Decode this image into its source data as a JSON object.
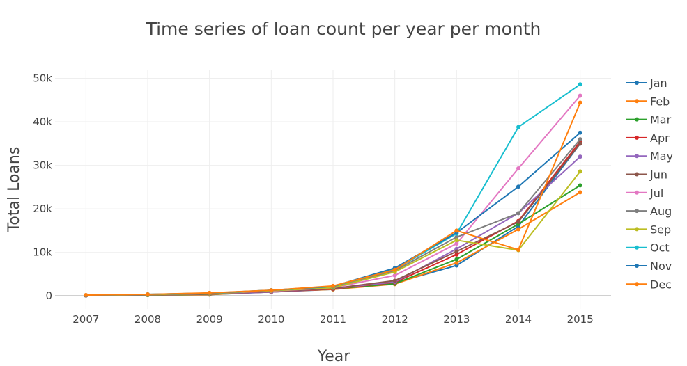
{
  "chart_data": {
    "type": "line",
    "title": "Time series of loan count per year per month",
    "xlabel": "Year",
    "ylabel": "Total Loans",
    "x": [
      2007,
      2008,
      2009,
      2010,
      2011,
      2012,
      2013,
      2014,
      2015
    ],
    "xlim": [
      2006.5,
      2015.5
    ],
    "ylim": [
      -3000,
      52000
    ],
    "yticks": [
      0,
      10000,
      20000,
      30000,
      40000,
      50000
    ],
    "ytick_labels": [
      "0",
      "10k",
      "20k",
      "30k",
      "40k",
      "50k"
    ],
    "grid": true,
    "legend_position": "right",
    "series": [
      {
        "name": "Jan",
        "color": "#1f77b4",
        "values": [
          100,
          200,
          300,
          900,
          1500,
          3000,
          7000,
          16000,
          35000
        ]
      },
      {
        "name": "Feb",
        "color": "#ff7f0e",
        "values": [
          100,
          200,
          300,
          1000,
          1500,
          2700,
          7600,
          15300,
          23800
        ]
      },
      {
        "name": "Mar",
        "color": "#2ca02c",
        "values": [
          100,
          200,
          400,
          1000,
          1600,
          2800,
          8400,
          16500,
          25400
        ]
      },
      {
        "name": "Apr",
        "color": "#d62728",
        "values": [
          100,
          250,
          450,
          900,
          1600,
          3100,
          9500,
          17200,
          35500
        ]
      },
      {
        "name": "May",
        "color": "#9467bd",
        "values": [
          100,
          250,
          450,
          900,
          1700,
          3200,
          10800,
          19000,
          32000
        ]
      },
      {
        "name": "Jun",
        "color": "#8c564b",
        "values": [
          100,
          250,
          500,
          1000,
          1700,
          3500,
          10200,
          17000,
          35000
        ]
      },
      {
        "name": "Jul",
        "color": "#e377c2",
        "values": [
          150,
          300,
          550,
          1100,
          1900,
          4700,
          12000,
          29300,
          46000
        ]
      },
      {
        "name": "Aug",
        "color": "#7f7f7f",
        "values": [
          150,
          300,
          550,
          1200,
          2000,
          5800,
          13500,
          19000,
          36000
        ]
      },
      {
        "name": "Sep",
        "color": "#bcbd22",
        "values": [
          150,
          300,
          550,
          1200,
          1900,
          5500,
          12800,
          10500,
          28600
        ]
      },
      {
        "name": "Oct",
        "color": "#17becf",
        "values": [
          150,
          350,
          650,
          1300,
          2200,
          6100,
          14300,
          38800,
          48600
        ]
      },
      {
        "name": "Nov",
        "color": "#1f77b4",
        "values": [
          150,
          350,
          650,
          1300,
          2200,
          6400,
          14500,
          25100,
          37500
        ]
      },
      {
        "name": "Dec",
        "color": "#ff7f0e",
        "values": [
          200,
          350,
          700,
          1300,
          2300,
          6000,
          15000,
          10600,
          44400
        ]
      }
    ]
  }
}
